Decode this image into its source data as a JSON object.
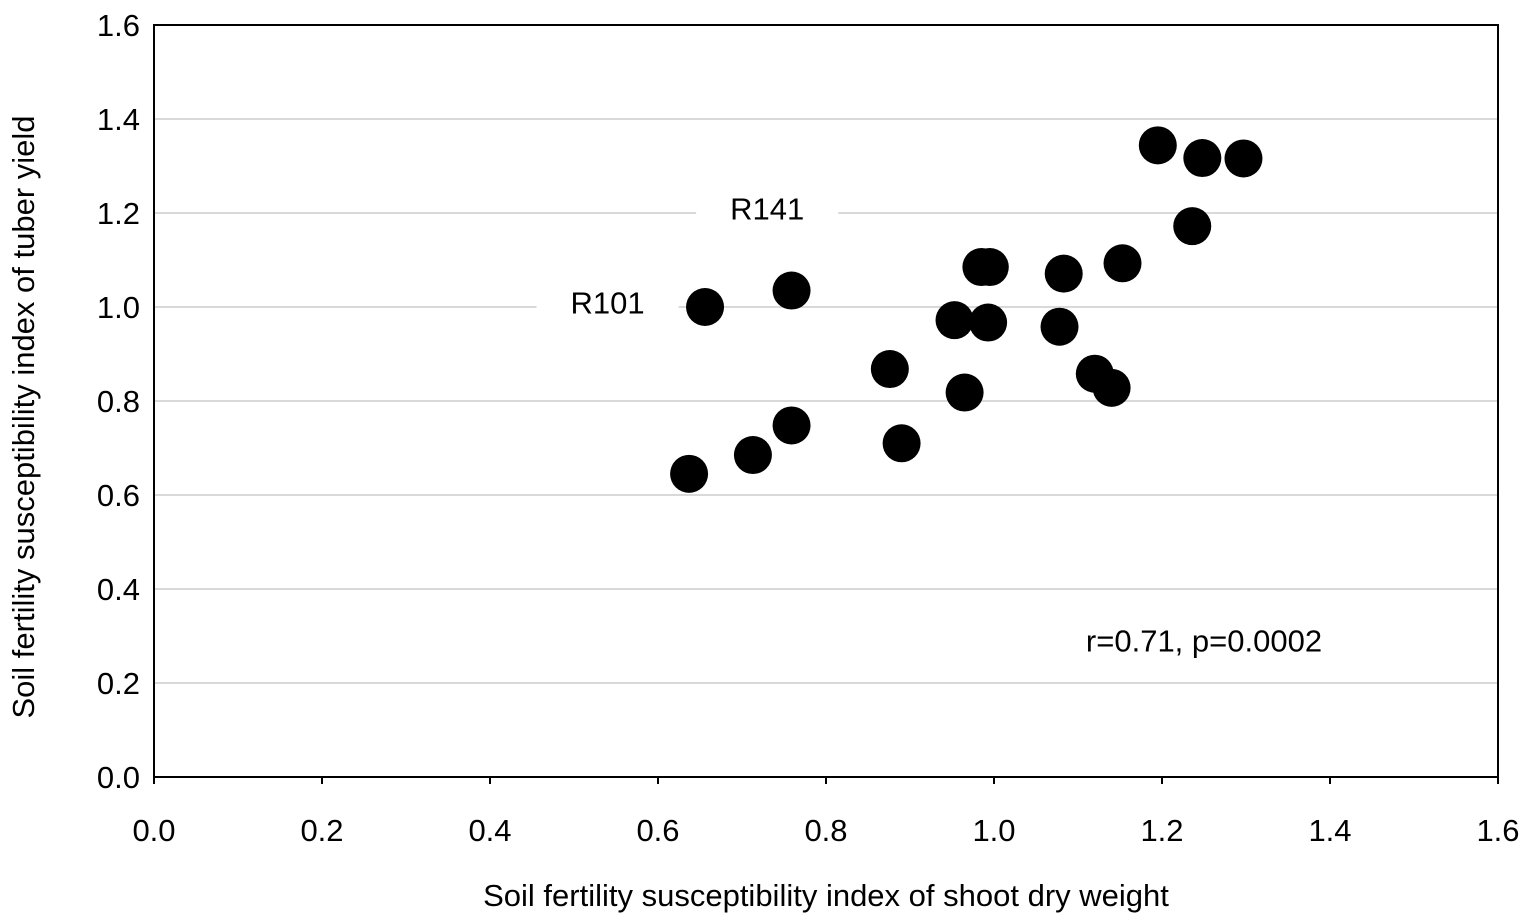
{
  "chart_data": {
    "type": "scatter",
    "title": "",
    "xlabel": "Soil fertility susceptibility index of shoot dry weight",
    "ylabel": "Soil fertility susceptibility index of tuber yield",
    "xlim": [
      0,
      1.6
    ],
    "ylim": [
      0,
      1.6
    ],
    "x_ticks": [
      "0.0",
      "0.2",
      "0.4",
      "0.6",
      "0.8",
      "1.0",
      "1.2",
      "1.4",
      "1.6"
    ],
    "y_ticks": [
      "0.0",
      "0.2",
      "0.4",
      "0.6",
      "0.8",
      "1.0",
      "1.2",
      "1.4",
      "1.6"
    ],
    "grid": "horizontal",
    "legend": "none",
    "points": [
      {
        "x": 0.637,
        "y": 0.645
      },
      {
        "x": 0.656,
        "y": 1.0
      },
      {
        "x": 0.713,
        "y": 0.685
      },
      {
        "x": 0.759,
        "y": 0.748
      },
      {
        "x": 0.759,
        "y": 1.035
      },
      {
        "x": 0.876,
        "y": 0.868
      },
      {
        "x": 0.89,
        "y": 0.71
      },
      {
        "x": 0.953,
        "y": 0.972
      },
      {
        "x": 0.965,
        "y": 0.818
      },
      {
        "x": 0.985,
        "y": 1.085
      },
      {
        "x": 0.995,
        "y": 1.085
      },
      {
        "x": 0.993,
        "y": 0.967
      },
      {
        "x": 1.078,
        "y": 0.958
      },
      {
        "x": 1.083,
        "y": 1.071
      },
      {
        "x": 1.12,
        "y": 0.858
      },
      {
        "x": 1.14,
        "y": 0.828
      },
      {
        "x": 1.153,
        "y": 1.093
      },
      {
        "x": 1.195,
        "y": 1.344
      },
      {
        "x": 1.236,
        "y": 1.172
      },
      {
        "x": 1.248,
        "y": 1.317
      },
      {
        "x": 1.297,
        "y": 1.316
      }
    ],
    "annotations": [
      {
        "text": "R141",
        "x": 0.73,
        "y": 1.21
      },
      {
        "text": "R101",
        "x": 0.54,
        "y": 1.01
      },
      {
        "text": "r=0.71, p=0.0002",
        "x": 1.25,
        "y": 0.29
      }
    ]
  }
}
